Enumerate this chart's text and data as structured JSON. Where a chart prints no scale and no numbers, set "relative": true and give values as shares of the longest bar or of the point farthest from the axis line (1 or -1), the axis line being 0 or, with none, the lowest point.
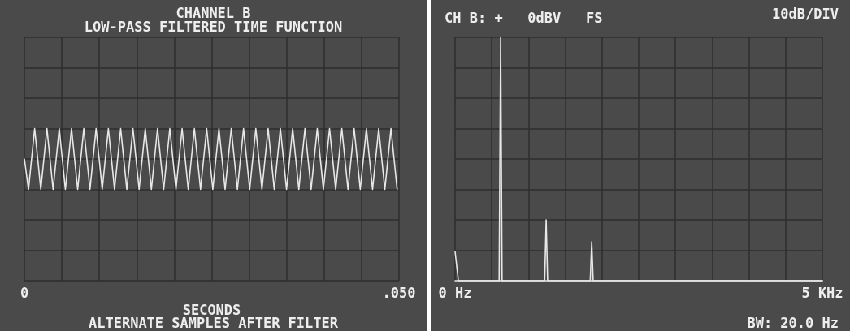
{
  "chart_data": [
    {
      "type": "line",
      "title": "CHANNEL B",
      "subtitle": "LOW-PASS FILTERED TIME FUNCTION",
      "xlabel": "SECONDS",
      "annotations": [
        "ALTERNATE SAMPLES AFTER FILTER"
      ],
      "relative": true,
      "grid": true,
      "line_style": "solid",
      "xlim": [
        0,
        0.05
      ],
      "xticks": [
        {
          "value": 0,
          "label": "0"
        },
        {
          "value": 0.005,
          "label": null
        },
        {
          "value": 0.01,
          "label": null
        },
        {
          "value": 0.015,
          "label": null
        },
        {
          "value": 0.02,
          "label": null
        },
        {
          "value": 0.025,
          "label": null
        },
        {
          "value": 0.03,
          "label": null
        },
        {
          "value": 0.035,
          "label": null
        },
        {
          "value": 0.04,
          "label": null
        },
        {
          "value": 0.045,
          "label": null
        },
        {
          "value": 0.05,
          "label": ".050"
        }
      ],
      "series": [
        {
          "color": "#e8e8e8",
          "x": [
            0,
            0.00055,
            0.00137,
            0.00219,
            0.00301,
            0.00383,
            0.00465,
            0.00547,
            0.00629,
            0.00711,
            0.00793,
            0.00875,
            0.00957,
            0.01039,
            0.01121,
            0.01203,
            0.01285,
            0.01367,
            0.01449,
            0.01531,
            0.01613,
            0.01695,
            0.01777,
            0.01859,
            0.01941,
            0.02023,
            0.02105,
            0.02187,
            0.02269,
            0.02351,
            0.02433,
            0.02515,
            0.02597,
            0.02679,
            0.02761,
            0.02843,
            0.02925,
            0.03007,
            0.03089,
            0.03171,
            0.03253,
            0.03335,
            0.03417,
            0.03499,
            0.03581,
            0.03663,
            0.03745,
            0.03827,
            0.03909,
            0.03991,
            0.04073,
            0.04155,
            0.04237,
            0.04319,
            0.04401,
            0.04483,
            0.04565,
            0.04647,
            0.04729,
            0.04811,
            0.04893,
            0.04975
          ],
          "values": [
            0.5,
            0,
            1,
            0,
            1,
            0,
            1,
            0,
            1,
            0,
            1,
            0,
            1,
            0,
            1,
            0,
            1,
            0,
            1,
            0,
            1,
            0,
            1,
            0,
            1,
            0,
            1,
            0,
            1,
            0,
            1,
            0,
            1,
            0,
            1,
            0,
            1,
            0,
            1,
            0,
            1,
            0,
            1,
            0,
            1,
            0,
            1,
            0,
            1,
            0,
            1,
            0,
            1,
            0,
            1,
            0,
            1,
            0,
            1,
            0,
            1,
            0
          ]
        }
      ]
    },
    {
      "type": "line",
      "title": "CH B: +   0dBV   FS",
      "annotations": [
        "10dB/DIV",
        "BW: 20.0 Hz"
      ],
      "relative": true,
      "grid": true,
      "line_style": "solid",
      "xlim": [
        0,
        5
      ],
      "xticks": [
        {
          "value": 0,
          "label": "0 Hz"
        },
        {
          "value": 0.5,
          "label": null
        },
        {
          "value": 1,
          "label": null
        },
        {
          "value": 1.5,
          "label": null
        },
        {
          "value": 2,
          "label": null
        },
        {
          "value": 2.5,
          "label": null
        },
        {
          "value": 3,
          "label": null
        },
        {
          "value": 3.5,
          "label": null
        },
        {
          "value": 4,
          "label": null
        },
        {
          "value": 4.5,
          "label": null
        },
        {
          "value": 5,
          "label": "5 KHz"
        }
      ],
      "series": [
        {
          "color": "#e8e8e8",
          "x": [
            0,
            0.045,
            0.6,
            0.62,
            0.64,
            1.22,
            1.24,
            1.26,
            1.84,
            1.86,
            1.88,
            5
          ],
          "values": [
            0.12,
            0,
            0,
            1,
            0,
            0,
            0.25,
            0,
            0,
            0.16,
            0,
            0
          ]
        }
      ]
    }
  ]
}
